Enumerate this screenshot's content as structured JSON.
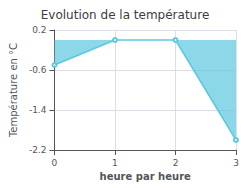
{
  "chart_data": {
    "type": "area",
    "title": "Evolution de la température",
    "xlabel": "heure par heure",
    "ylabel": "Température en °C",
    "x": [
      0,
      1,
      2,
      3
    ],
    "values": [
      -0.5,
      0.0,
      0.0,
      -2.0
    ],
    "color": "#5bc8e0",
    "xlim": [
      0,
      3
    ],
    "xticks": [
      0,
      1,
      2,
      3
    ],
    "ylim": [
      -2.2,
      0.2
    ],
    "yticks": [
      0.2,
      -0.6,
      -1.4,
      -2.2
    ],
    "grid": true
  }
}
